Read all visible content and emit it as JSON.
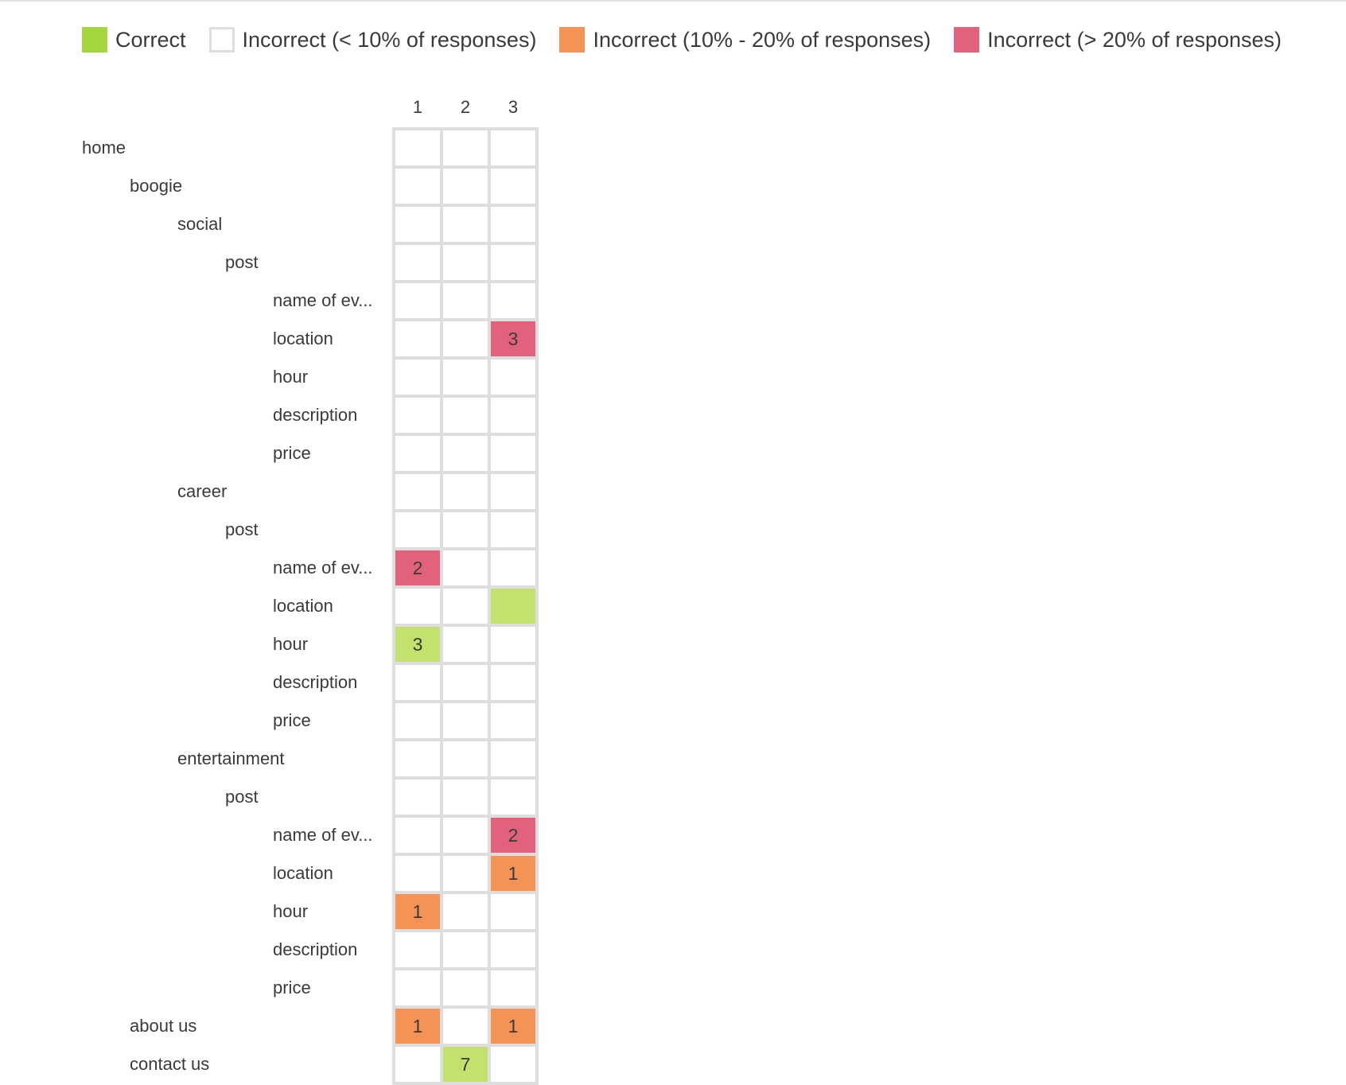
{
  "legend": [
    {
      "label": "Correct",
      "color": "#a5d63f",
      "border": "#a5d63f"
    },
    {
      "label": "Incorrect (< 10% of responses)",
      "color": "#ffffff",
      "border": "#dcdfe2"
    },
    {
      "label": "Incorrect (10% - 20% of responses)",
      "color": "#f59255",
      "border": "#f59255"
    },
    {
      "label": "Incorrect (> 20% of responses)",
      "color": "#e1627a",
      "border": "#e1627a"
    }
  ],
  "columns": [
    "1",
    "2",
    "3"
  ],
  "colors": {
    "correct": "#c2e16d",
    "low": "#ffffff",
    "medium": "#f59255",
    "high": "#e1627a",
    "gridline": "#dedede"
  },
  "chart_data": {
    "type": "heatmap",
    "columns": [
      "1",
      "2",
      "3"
    ],
    "rows": [
      {
        "label": "home",
        "level": 0,
        "cells": [
          null,
          null,
          null
        ]
      },
      {
        "label": "boogie",
        "level": 1,
        "cells": [
          null,
          null,
          null
        ]
      },
      {
        "label": "social",
        "level": 2,
        "cells": [
          null,
          null,
          null
        ]
      },
      {
        "label": "post",
        "level": 3,
        "cells": [
          null,
          null,
          null
        ]
      },
      {
        "label": "name of ev...",
        "level": 4,
        "cells": [
          null,
          null,
          null
        ]
      },
      {
        "label": "location",
        "level": 4,
        "cells": [
          null,
          null,
          {
            "value": "3",
            "category": "high"
          }
        ]
      },
      {
        "label": "hour",
        "level": 4,
        "cells": [
          null,
          null,
          null
        ]
      },
      {
        "label": "description",
        "level": 4,
        "cells": [
          null,
          null,
          null
        ]
      },
      {
        "label": "price",
        "level": 4,
        "cells": [
          null,
          null,
          null
        ]
      },
      {
        "label": "career",
        "level": 2,
        "cells": [
          null,
          null,
          null
        ]
      },
      {
        "label": "post",
        "level": 3,
        "cells": [
          null,
          null,
          null
        ]
      },
      {
        "label": "name of ev...",
        "level": 4,
        "cells": [
          {
            "value": "2",
            "category": "high"
          },
          null,
          null
        ]
      },
      {
        "label": "location",
        "level": 4,
        "cells": [
          null,
          null,
          {
            "value": "",
            "category": "correct"
          }
        ]
      },
      {
        "label": "hour",
        "level": 4,
        "cells": [
          {
            "value": "3",
            "category": "correct"
          },
          null,
          null
        ]
      },
      {
        "label": "description",
        "level": 4,
        "cells": [
          null,
          null,
          null
        ]
      },
      {
        "label": "price",
        "level": 4,
        "cells": [
          null,
          null,
          null
        ]
      },
      {
        "label": "entertainment",
        "level": 2,
        "cells": [
          null,
          null,
          null
        ]
      },
      {
        "label": "post",
        "level": 3,
        "cells": [
          null,
          null,
          null
        ]
      },
      {
        "label": "name of ev...",
        "level": 4,
        "cells": [
          null,
          null,
          {
            "value": "2",
            "category": "high"
          }
        ]
      },
      {
        "label": "location",
        "level": 4,
        "cells": [
          null,
          null,
          {
            "value": "1",
            "category": "medium"
          }
        ]
      },
      {
        "label": "hour",
        "level": 4,
        "cells": [
          {
            "value": "1",
            "category": "medium"
          },
          null,
          null
        ]
      },
      {
        "label": "description",
        "level": 4,
        "cells": [
          null,
          null,
          null
        ]
      },
      {
        "label": "price",
        "level": 4,
        "cells": [
          null,
          null,
          null
        ]
      },
      {
        "label": "about us",
        "level": 1,
        "cells": [
          {
            "value": "1",
            "category": "medium"
          },
          null,
          {
            "value": "1",
            "category": "medium"
          }
        ]
      },
      {
        "label": "contact us",
        "level": 1,
        "cells": [
          null,
          {
            "value": "7",
            "category": "correct"
          },
          null
        ]
      }
    ]
  }
}
